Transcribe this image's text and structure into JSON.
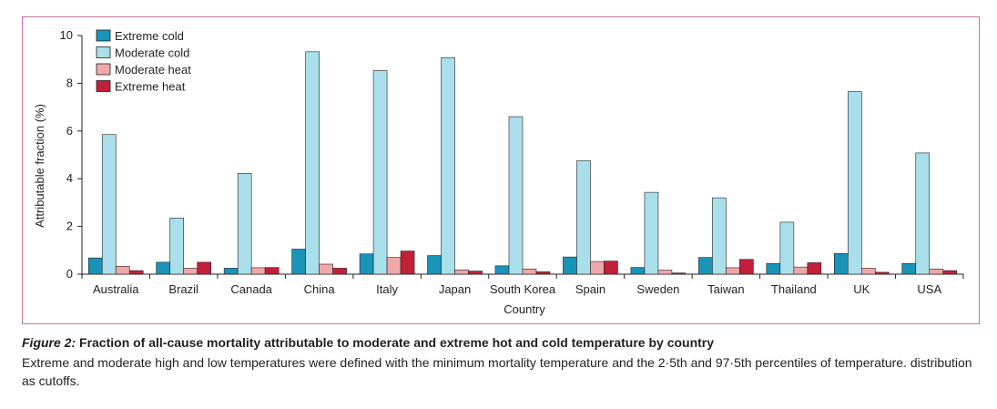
{
  "chart_data": {
    "type": "bar",
    "title": "",
    "xlabel": "Country",
    "ylabel": "Attributable fraction (%)",
    "ylim": [
      0,
      10
    ],
    "yticks": [
      "0",
      "2",
      "4",
      "6",
      "8",
      "10"
    ],
    "legend_position": "top-left",
    "categories": [
      "Australia",
      "Brazil",
      "Canada",
      "China",
      "Italy",
      "Japan",
      "South Korea",
      "Spain",
      "Sweden",
      "Taiwan",
      "Thailand",
      "UK",
      "USA"
    ],
    "series": [
      {
        "name": "Extreme cold",
        "color": "#1a93b8",
        "values": [
          0.68,
          0.5,
          0.25,
          1.05,
          0.85,
          0.78,
          0.35,
          0.72,
          0.28,
          0.7,
          0.45,
          0.87,
          0.45
        ]
      },
      {
        "name": "Moderate cold",
        "color": "#a9dfea",
        "values": [
          5.85,
          2.35,
          4.22,
          9.32,
          8.53,
          9.07,
          6.6,
          4.75,
          3.43,
          3.2,
          2.18,
          7.65,
          5.08
        ]
      },
      {
        "name": "Moderate heat",
        "color": "#f0a7a7",
        "values": [
          0.33,
          0.25,
          0.27,
          0.42,
          0.7,
          0.18,
          0.22,
          0.53,
          0.17,
          0.27,
          0.3,
          0.25,
          0.22
        ]
      },
      {
        "name": "Extreme heat",
        "color": "#c21f3a",
        "values": [
          0.15,
          0.5,
          0.28,
          0.25,
          0.97,
          0.13,
          0.1,
          0.55,
          0.05,
          0.62,
          0.48,
          0.08,
          0.15
        ]
      }
    ]
  },
  "caption": {
    "label": "Figure 2:",
    "title": "Fraction of all-cause mortality attributable to moderate and extreme hot and cold temperature by country",
    "body": "Extreme and moderate high and low temperatures were defined with the minimum mortality temperature and the 2·5th and 97·5th percentiles of temperature. distribution as cutoffs."
  },
  "colors": {
    "frame": "#c9739a",
    "axis": "#231f20"
  }
}
